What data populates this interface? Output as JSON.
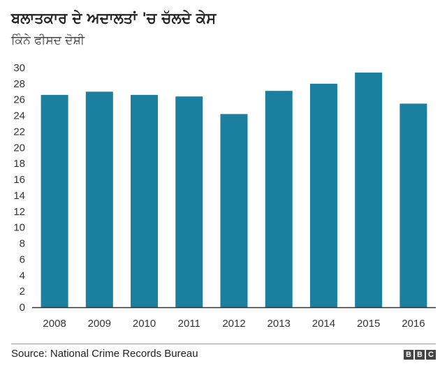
{
  "chart_data": {
    "type": "bar",
    "title": "ਬਲਾਤਕਾਰ ਦੇ ਅਦਾਲਤਾਂ 'ਚ ਚੱਲਦੇ ਕੇਸ",
    "subtitle": "ਕਿੰਨੇ ਫੀਸਦ ਦੋਸ਼ੀ",
    "categories": [
      "2008",
      "2009",
      "2010",
      "2011",
      "2012",
      "2013",
      "2014",
      "2015",
      "2016"
    ],
    "values": [
      26.6,
      27.0,
      26.6,
      26.4,
      24.2,
      27.1,
      28.0,
      29.4,
      25.5
    ],
    "yticks": [
      0,
      2,
      4,
      6,
      8,
      10,
      12,
      14,
      16,
      18,
      20,
      22,
      24,
      26,
      28,
      30
    ],
    "ylim": [
      0,
      30
    ],
    "xlabel": "",
    "ylabel": "",
    "grid": false,
    "bar_color": "#1b80a0",
    "axis_color": "#333333"
  },
  "footer": {
    "source": "Source: National Crime Records Bureau",
    "logo_letters": [
      "B",
      "B",
      "C"
    ]
  }
}
